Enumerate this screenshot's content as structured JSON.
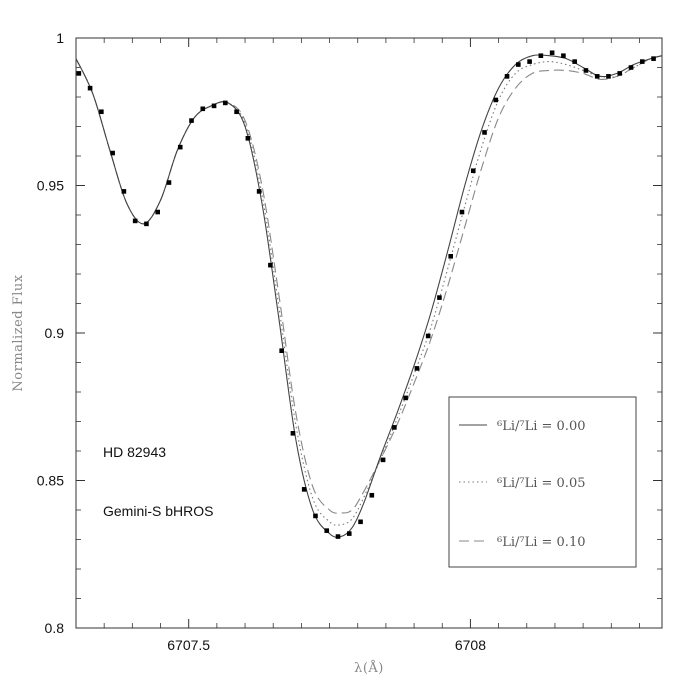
{
  "chart_data": {
    "type": "line",
    "title": "",
    "xlabel": "λ(Å)",
    "ylabel": "Normalized Flux",
    "xlim": [
      6707.3,
      6708.34
    ],
    "ylim": [
      0.8,
      1.0
    ],
    "x_ticks": [
      6707.5,
      6708
    ],
    "x_tick_labels": [
      "6707.5",
      "6708"
    ],
    "y_ticks": [
      0.8,
      0.85,
      0.9,
      0.95,
      1.0
    ],
    "y_tick_labels": [
      "0.8",
      "0.85",
      "0.9",
      "0.95",
      "1"
    ],
    "annotations": [
      "HD 82943",
      "Gemini-S bHROS"
    ],
    "legend_position": "lower-right",
    "series": [
      {
        "name": "⁶Li/⁷Li = 0.00",
        "style": "solid",
        "color": "#444444",
        "x": [
          6707.3,
          6707.33,
          6707.36,
          6707.39,
          6707.42,
          6707.45,
          6707.48,
          6707.51,
          6707.54,
          6707.57,
          6707.6,
          6707.63,
          6707.66,
          6707.69,
          6707.72,
          6707.75,
          6707.77,
          6707.79,
          6707.81,
          6707.84,
          6707.87,
          6707.9,
          6707.93,
          6707.96,
          6707.99,
          6708.02,
          6708.05,
          6708.08,
          6708.11,
          6708.14,
          6708.17,
          6708.2,
          6708.23,
          6708.26,
          6708.29,
          6708.32,
          6708.34
        ],
        "y": [
          0.993,
          0.981,
          0.962,
          0.944,
          0.937,
          0.945,
          0.962,
          0.973,
          0.977,
          0.978,
          0.97,
          0.944,
          0.905,
          0.864,
          0.84,
          0.832,
          0.831,
          0.834,
          0.842,
          0.858,
          0.873,
          0.889,
          0.907,
          0.928,
          0.95,
          0.969,
          0.983,
          0.991,
          0.994,
          0.994,
          0.993,
          0.99,
          0.987,
          0.988,
          0.991,
          0.993,
          0.994
        ]
      },
      {
        "name": "⁶Li/⁷Li = 0.05",
        "style": "dotted",
        "color": "#777777",
        "x": [
          6707.3,
          6707.33,
          6707.36,
          6707.39,
          6707.42,
          6707.45,
          6707.48,
          6707.51,
          6707.54,
          6707.57,
          6707.6,
          6707.63,
          6707.66,
          6707.69,
          6707.72,
          6707.75,
          6707.77,
          6707.79,
          6707.81,
          6707.84,
          6707.87,
          6707.9,
          6707.93,
          6707.96,
          6707.99,
          6708.02,
          6708.05,
          6708.08,
          6708.11,
          6708.14,
          6708.17,
          6708.2,
          6708.23,
          6708.26,
          6708.29,
          6708.32,
          6708.34
        ],
        "y": [
          0.993,
          0.981,
          0.962,
          0.944,
          0.937,
          0.945,
          0.962,
          0.973,
          0.977,
          0.978,
          0.971,
          0.947,
          0.909,
          0.869,
          0.844,
          0.836,
          0.835,
          0.837,
          0.844,
          0.857,
          0.871,
          0.886,
          0.902,
          0.922,
          0.943,
          0.963,
          0.979,
          0.988,
          0.991,
          0.992,
          0.991,
          0.989,
          0.987,
          0.987,
          0.99,
          0.993,
          0.994
        ]
      },
      {
        "name": "⁶Li/⁷Li = 0.10",
        "style": "dashed",
        "color": "#888888",
        "x": [
          6707.3,
          6707.33,
          6707.36,
          6707.39,
          6707.42,
          6707.45,
          6707.48,
          6707.51,
          6707.54,
          6707.57,
          6707.6,
          6707.63,
          6707.66,
          6707.69,
          6707.72,
          6707.75,
          6707.77,
          6707.79,
          6707.81,
          6707.84,
          6707.87,
          6707.9,
          6707.93,
          6707.96,
          6707.99,
          6708.02,
          6708.05,
          6708.08,
          6708.11,
          6708.14,
          6708.17,
          6708.2,
          6708.23,
          6708.26,
          6708.29,
          6708.32,
          6708.34
        ],
        "y": [
          0.993,
          0.981,
          0.962,
          0.944,
          0.937,
          0.945,
          0.962,
          0.973,
          0.977,
          0.978,
          0.972,
          0.95,
          0.913,
          0.873,
          0.848,
          0.84,
          0.839,
          0.84,
          0.846,
          0.857,
          0.869,
          0.883,
          0.898,
          0.916,
          0.936,
          0.956,
          0.973,
          0.983,
          0.988,
          0.989,
          0.989,
          0.988,
          0.986,
          0.987,
          0.99,
          0.993,
          0.994
        ]
      }
    ],
    "observed": {
      "name": "Gemini-S bHROS data",
      "marker": "square",
      "color": "#000000",
      "x": [
        6707.305,
        6707.325,
        6707.345,
        6707.365,
        6707.385,
        6707.405,
        6707.425,
        6707.445,
        6707.465,
        6707.485,
        6707.505,
        6707.525,
        6707.545,
        6707.565,
        6707.585,
        6707.605,
        6707.625,
        6707.645,
        6707.665,
        6707.685,
        6707.705,
        6707.725,
        6707.745,
        6707.765,
        6707.785,
        6707.805,
        6707.825,
        6707.845,
        6707.865,
        6707.885,
        6707.905,
        6707.925,
        6707.945,
        6707.965,
        6707.985,
        6708.005,
        6708.025,
        6708.045,
        6708.065,
        6708.085,
        6708.105,
        6708.125,
        6708.145,
        6708.165,
        6708.185,
        6708.205,
        6708.225,
        6708.245,
        6708.265,
        6708.285,
        6708.305,
        6708.325
      ],
      "y": [
        0.988,
        0.983,
        0.975,
        0.961,
        0.948,
        0.938,
        0.937,
        0.941,
        0.951,
        0.963,
        0.972,
        0.976,
        0.977,
        0.978,
        0.975,
        0.966,
        0.948,
        0.923,
        0.894,
        0.866,
        0.847,
        0.838,
        0.833,
        0.831,
        0.832,
        0.836,
        0.845,
        0.857,
        0.868,
        0.878,
        0.888,
        0.899,
        0.912,
        0.926,
        0.941,
        0.955,
        0.968,
        0.979,
        0.987,
        0.991,
        0.992,
        0.994,
        0.995,
        0.994,
        0.992,
        0.989,
        0.987,
        0.987,
        0.988,
        0.99,
        0.992,
        0.993
      ]
    }
  }
}
